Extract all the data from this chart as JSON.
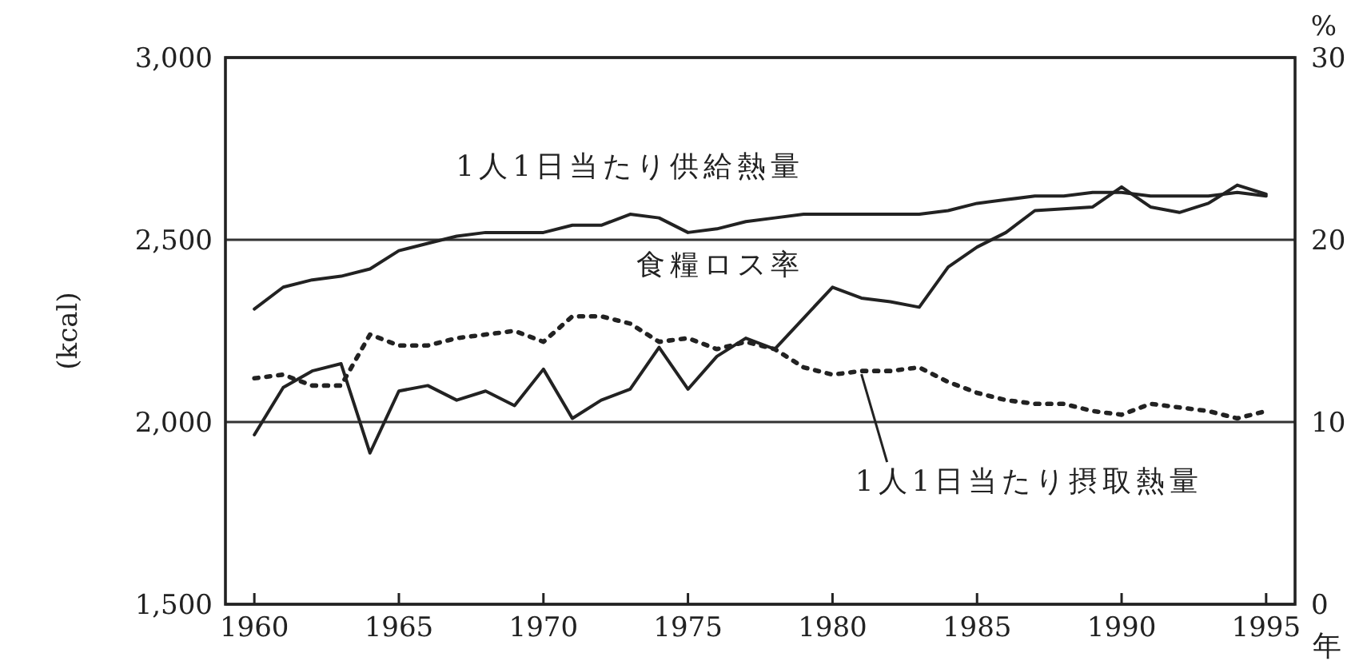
{
  "chart_data": {
    "type": "line",
    "x": [
      1960,
      1961,
      1962,
      1963,
      1964,
      1965,
      1966,
      1967,
      1968,
      1969,
      1970,
      1971,
      1972,
      1973,
      1974,
      1975,
      1976,
      1977,
      1978,
      1979,
      1980,
      1981,
      1982,
      1983,
      1984,
      1985,
      1986,
      1987,
      1988,
      1989,
      1990,
      1991,
      1992,
      1993,
      1994,
      1995
    ],
    "series": [
      {
        "name": "1人1日当たり供給熱量",
        "color": "#222222",
        "line_style": "solid",
        "values": [
          2310,
          2370,
          2390,
          2400,
          2420,
          2470,
          2490,
          2510,
          2520,
          2520,
          2520,
          2540,
          2540,
          2570,
          2560,
          2520,
          2530,
          2550,
          2560,
          2570,
          2570,
          2570,
          2570,
          2570,
          2580,
          2600,
          2610,
          2620,
          2620,
          2630,
          2630,
          2620,
          2620,
          2620,
          2630,
          2620
        ]
      },
      {
        "name": "食糧ロス率",
        "color": "#222222",
        "line_style": "solid",
        "axis": "y2",
        "values": [
          9.3,
          11.9,
          12.8,
          13.2,
          8.3,
          11.7,
          12.0,
          11.2,
          11.7,
          10.9,
          12.9,
          10.2,
          11.2,
          11.8,
          14.1,
          11.8,
          13.6,
          14.6,
          14.0,
          15.7,
          17.4,
          16.8,
          16.6,
          16.3,
          18.5,
          19.6,
          20.4,
          21.6,
          21.7,
          21.8,
          22.9,
          21.8,
          21.5,
          22.0,
          23.0,
          22.5
        ]
      },
      {
        "name": "1人1日当たり摂取熱量",
        "color": "#222222",
        "line_style": "dotted",
        "values": [
          2120,
          2130,
          2100,
          2100,
          2240,
          2210,
          2210,
          2230,
          2240,
          2250,
          2220,
          2290,
          2290,
          2270,
          2220,
          2230,
          2200,
          2220,
          2200,
          2150,
          2130,
          2140,
          2140,
          2150,
          2110,
          2080,
          2060,
          2050,
          2050,
          2030,
          2020,
          2050,
          2040,
          2030,
          2010,
          2030
        ]
      }
    ],
    "xlim": [
      1959,
      1996
    ],
    "xticks": [
      1960,
      1965,
      1970,
      1975,
      1980,
      1985,
      1990,
      1995
    ],
    "ylim": [
      1500,
      3000
    ],
    "yticks": [
      {
        "value": 1500,
        "label": "1,500"
      },
      {
        "value": 2000,
        "label": "2,000"
      },
      {
        "value": 2500,
        "label": "2,500"
      },
      {
        "value": 3000,
        "label": "3,000"
      }
    ],
    "y2lim": [
      0,
      30
    ],
    "y2ticks": [
      0,
      10,
      20,
      30
    ],
    "ylabel": "(kcal)",
    "y2label": "%",
    "xlabel": "年",
    "grid": "y",
    "marker": "none"
  }
}
